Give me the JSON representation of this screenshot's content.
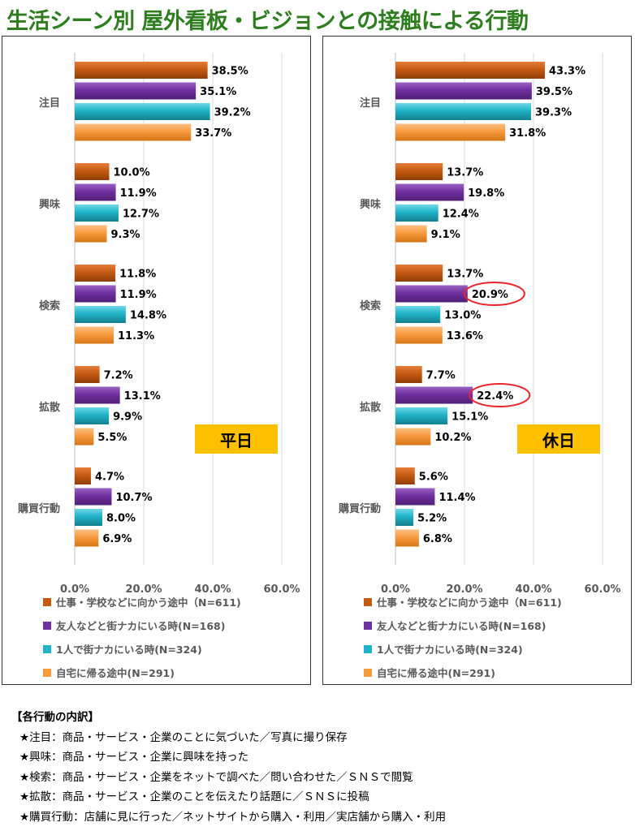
{
  "title": "生活シーン別 屋外看板・ビジョンとの接触による行動",
  "legend": [
    {
      "label": "仕事・学校などに向かう途中（N=611)",
      "color": "#c55a11"
    },
    {
      "label": "友人などと街ナカにいる時(N=168)",
      "color": "#7030a0"
    },
    {
      "label": "1人で街ナカにいる時(N=324)",
      "color": "#1fb3c8"
    },
    {
      "label": "自宅に帰る途中(N=291)",
      "color": "#f79a3e"
    }
  ],
  "chart_data": [
    {
      "type": "bar",
      "orientation": "horizontal",
      "badge": "平日",
      "categories": [
        "注目",
        "興味",
        "検索",
        "拡散",
        "購買行動"
      ],
      "series": [
        {
          "name": "仕事・学校などに向かう途中（N=611)",
          "values": [
            38.5,
            10.0,
            11.8,
            7.2,
            4.7
          ]
        },
        {
          "name": "友人などと街ナカにいる時(N=168)",
          "values": [
            35.1,
            11.9,
            11.9,
            13.1,
            10.7
          ]
        },
        {
          "name": "1人で街ナカにいる時(N=324)",
          "values": [
            39.2,
            12.7,
            14.8,
            9.9,
            8.0
          ]
        },
        {
          "name": "自宅に帰る途中(N=291)",
          "values": [
            33.7,
            9.3,
            11.3,
            5.5,
            6.9
          ]
        }
      ],
      "xlim": [
        0,
        60
      ],
      "xticks": [
        "0.0%",
        "20.0%",
        "40.0%",
        "60.0%"
      ],
      "value_format": "%",
      "grid": true,
      "highlights": []
    },
    {
      "type": "bar",
      "orientation": "horizontal",
      "badge": "休日",
      "categories": [
        "注目",
        "興味",
        "検索",
        "拡散",
        "購買行動"
      ],
      "series": [
        {
          "name": "仕事・学校などに向かう途中（N=611)",
          "values": [
            43.3,
            13.7,
            13.7,
            7.7,
            5.6
          ]
        },
        {
          "name": "友人などと街ナカにいる時(N=168)",
          "values": [
            39.5,
            19.8,
            20.9,
            22.4,
            11.4
          ]
        },
        {
          "name": "1人で街ナカにいる時(N=324)",
          "values": [
            39.3,
            12.4,
            13.0,
            15.1,
            5.2
          ]
        },
        {
          "name": "自宅に帰る途中(N=291)",
          "values": [
            31.8,
            9.1,
            13.6,
            10.2,
            6.8
          ]
        }
      ],
      "xlim": [
        0,
        60
      ],
      "xticks": [
        "0.0%",
        "20.0%",
        "40.0%",
        "60.0%"
      ],
      "value_format": "%",
      "grid": true,
      "highlights": [
        {
          "category": "検索",
          "series": 1
        },
        {
          "category": "拡散",
          "series": 1
        }
      ]
    }
  ],
  "notes": {
    "heading": "【各行動の内訳】",
    "items": [
      "★注目：商品・サービス・企業のことに気づいた／写真に撮り保存",
      "★興味：商品・サービス・企業に興味を持った",
      "★検索：商品・サービス・企業をネットで調べた／問い合わせた／ＳＮＳで閲覧",
      "★拡散：商品・サービス・企業のことを伝えたり話題に／ＳＮＳに投稿",
      "★購買行動：店舗に見に行った／ネットサイトから購入・利用／実店舗から購入・利用"
    ]
  }
}
